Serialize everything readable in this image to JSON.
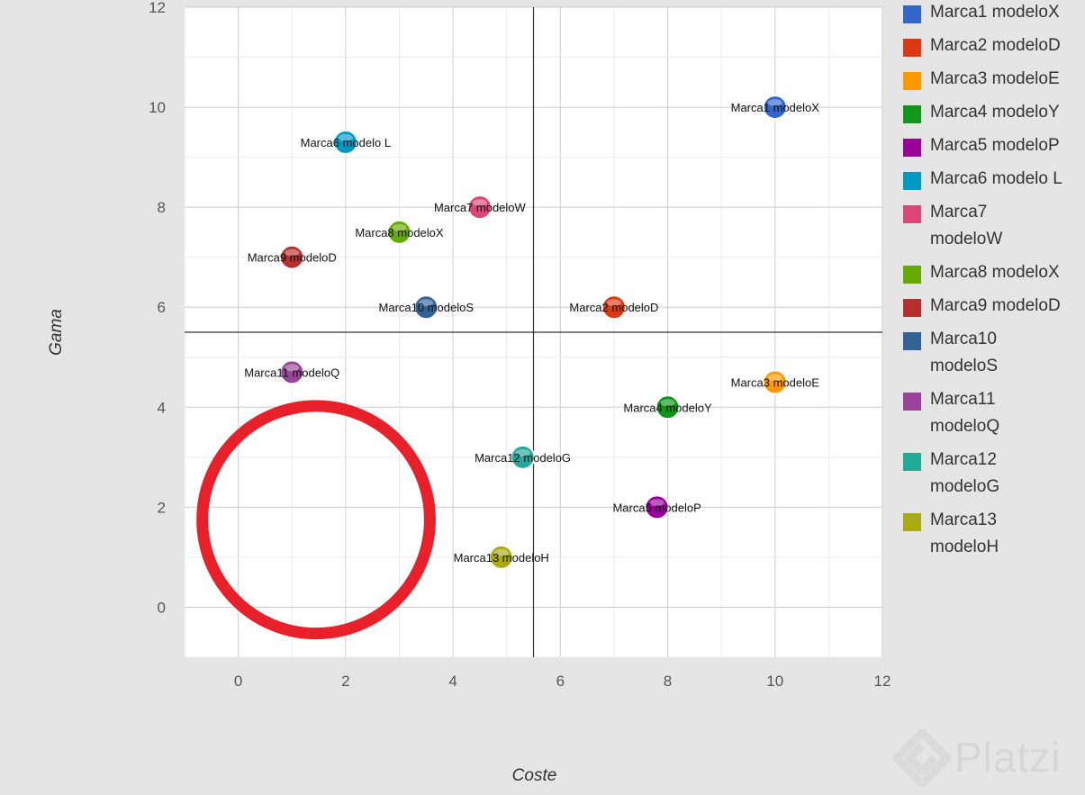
{
  "chart_data": {
    "type": "scatter",
    "title": "",
    "xlabel": "Coste",
    "ylabel": "Gama",
    "xlim": [
      -1,
      12
    ],
    "ylim": [
      -1,
      12
    ],
    "x_ticks": [
      0,
      2,
      4,
      6,
      8,
      10,
      12
    ],
    "y_ticks": [
      0,
      2,
      4,
      6,
      8,
      10,
      12
    ],
    "grid": true,
    "reference_lines": {
      "x": 5.5,
      "y": 5.5
    },
    "legend_position": "right",
    "series": [
      {
        "name": "Marca1 modeloX",
        "color": "#3366cc",
        "x": 10,
        "y": 10,
        "label": "Marca1 modeloX"
      },
      {
        "name": "Marca2 modeloD",
        "color": "#dc3912",
        "x": 7,
        "y": 6,
        "label": "Marca2 modeloD"
      },
      {
        "name": "Marca3 modeloE",
        "color": "#ff9900",
        "x": 10,
        "y": 4.5,
        "label": "Marca3 modeloE"
      },
      {
        "name": "Marca4 modeloY",
        "color": "#109618",
        "x": 8,
        "y": 4,
        "label": "Marca4 modeloY"
      },
      {
        "name": "Marca5 modeloP",
        "color": "#990099",
        "x": 7.8,
        "y": 2,
        "label": "Marca5 modeloP"
      },
      {
        "name": "Marca6 modelo L",
        "color": "#0099c6",
        "x": 2,
        "y": 9.3,
        "label": "Marca6 modelo L"
      },
      {
        "name": "Marca7 modeloW",
        "color": "#dd4477",
        "x": 4.5,
        "y": 8,
        "label": "Marca7 modeloW"
      },
      {
        "name": "Marca8 modeloX",
        "color": "#66aa00",
        "x": 3,
        "y": 7.5,
        "label": "Marca8 modeloX"
      },
      {
        "name": "Marca9 modeloD",
        "color": "#b82e2e",
        "x": 1,
        "y": 7,
        "label": "Marca9 modeloD"
      },
      {
        "name": "Marca10 modeloS",
        "color": "#316395",
        "x": 3.5,
        "y": 6,
        "label": "Marca10 modeloS"
      },
      {
        "name": "Marca11 modeloQ",
        "color": "#994499",
        "x": 1,
        "y": 4.7,
        "label": "Marca11 modeloQ"
      },
      {
        "name": "Marca12 modeloG",
        "color": "#22aa99",
        "x": 5.3,
        "y": 3,
        "label": "Marca12 modeloG"
      },
      {
        "name": "Marca13 modeloH",
        "color": "#aaaa11",
        "x": 4.9,
        "y": 1,
        "label": "Marca13 modeloH"
      }
    ]
  },
  "legend": [
    {
      "line1": "Marca1 modeloX",
      "line2": "",
      "color": "#3366cc"
    },
    {
      "line1": "Marca2 modeloD",
      "line2": "",
      "color": "#dc3912"
    },
    {
      "line1": "Marca3 modeloE",
      "line2": "",
      "color": "#ff9900"
    },
    {
      "line1": "Marca4 modeloY",
      "line2": "",
      "color": "#109618"
    },
    {
      "line1": "Marca5 modeloP",
      "line2": "",
      "color": "#990099"
    },
    {
      "line1": "Marca6 modelo L",
      "line2": "",
      "color": "#0099c6"
    },
    {
      "line1": "Marca7",
      "line2": "modeloW",
      "color": "#dd4477"
    },
    {
      "line1": "Marca8 modeloX",
      "line2": "",
      "color": "#66aa00"
    },
    {
      "line1": "Marca9 modeloD",
      "line2": "",
      "color": "#b82e2e"
    },
    {
      "line1": "Marca10",
      "line2": "modeloS",
      "color": "#316395"
    },
    {
      "line1": "Marca11",
      "line2": "modeloQ",
      "color": "#994499"
    },
    {
      "line1": "Marca12",
      "line2": "modeloG",
      "color": "#22aa99"
    },
    {
      "line1": "Marca13",
      "line2": "modeloH",
      "color": "#aaaa11"
    }
  ],
  "annotation": {
    "shape": "circle",
    "color": "#e8202a",
    "center": {
      "x": 1.45,
      "y": 1.75
    },
    "radius": 2.12
  },
  "watermark": {
    "text": "Platzi",
    "color": "#d6d6d6"
  }
}
